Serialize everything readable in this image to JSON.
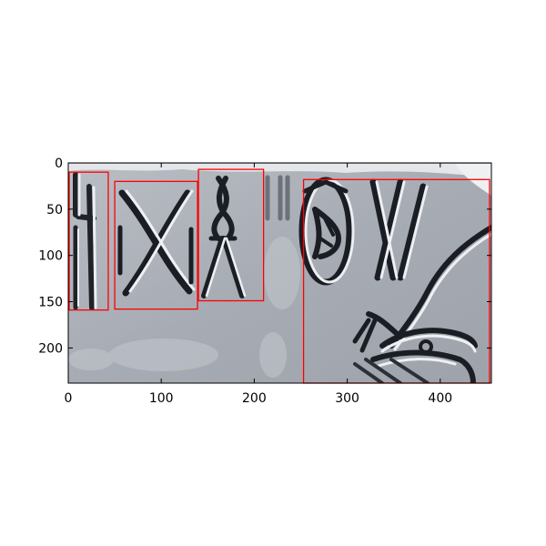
{
  "figure": {
    "image_subject": "seal-impression-stone-carving",
    "box_color": "#ff0000",
    "stone_color": "#a9aeb6",
    "axis_color": "#000000"
  },
  "axes": {
    "x": {
      "range": [
        0,
        455
      ],
      "ticks": [
        0,
        100,
        200,
        300,
        400
      ],
      "tick_labels": [
        "0",
        "100",
        "200",
        "300",
        "400"
      ]
    },
    "y": {
      "range": [
        238,
        0
      ],
      "ticks": [
        0,
        50,
        100,
        150,
        200
      ],
      "tick_labels": [
        "0",
        "50",
        "100",
        "150",
        "200"
      ]
    }
  },
  "boxes": [
    {
      "x0": 1,
      "y0": 10,
      "x1": 43,
      "y1": 159
    },
    {
      "x0": 50,
      "y0": 20,
      "x1": 139,
      "y1": 158
    },
    {
      "x0": 140,
      "y0": 7,
      "x1": 210,
      "y1": 149
    },
    {
      "x0": 253,
      "y0": 18,
      "x1": 453,
      "y1": 238
    }
  ]
}
